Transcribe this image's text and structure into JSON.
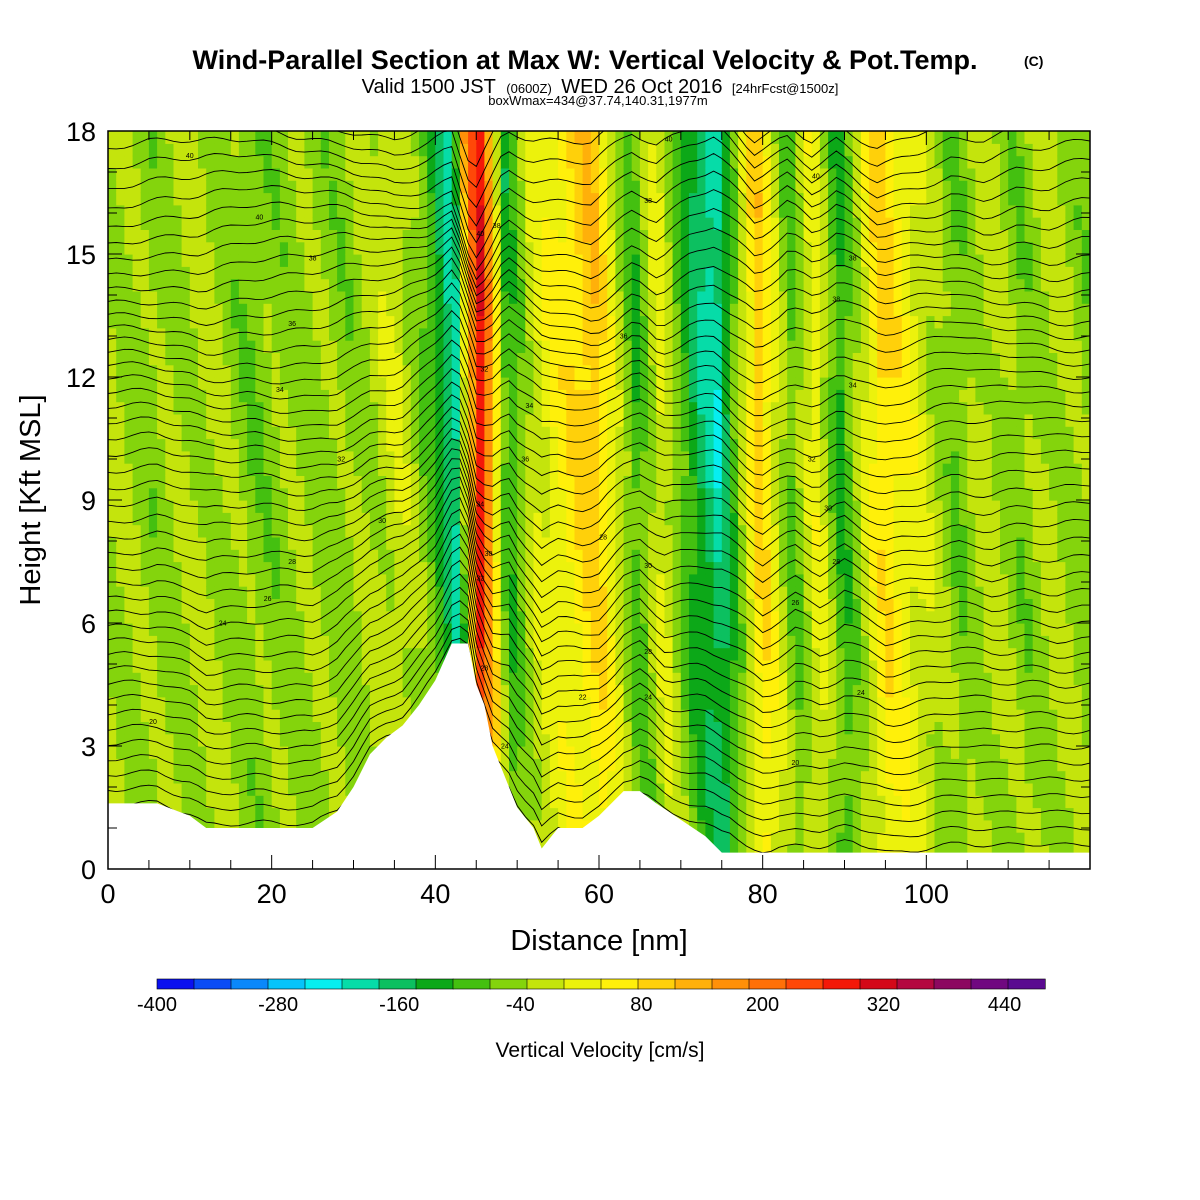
{
  "chart_data": {
    "type": "heatmap",
    "title": "Wind-Parallel Section at Max W: Vertical Velocity & Pot.Temp.",
    "title_mark": "(C)",
    "subtitle": {
      "valid": "Valid 1500 JST",
      "utc": "(0600Z)",
      "date": "WED 26 Oct 2016",
      "forecast": "[24hrFcst@1500z]"
    },
    "box_info": "boxWmax=434@37.74,140.31,1977m",
    "xlabel": "Distance [nm]",
    "ylabel": "Height [Kft MSL]",
    "xlim": [
      0,
      120
    ],
    "ylim": [
      0,
      18
    ],
    "x_ticks": [
      0,
      20,
      40,
      60,
      80,
      100
    ],
    "y_ticks": [
      0,
      3,
      6,
      9,
      12,
      15,
      18
    ],
    "colorbar": {
      "label": "Vertical Velocity [cm/s]",
      "min": -400,
      "max": 480,
      "step": 40,
      "tick_labels": [
        "-400",
        "-280",
        "-160",
        "-40",
        "80",
        "200",
        "320",
        "440"
      ],
      "colors": [
        "#0a10f0",
        "#0a4cf5",
        "#0a88fa",
        "#06c4fa",
        "#06eef0",
        "#06dca8",
        "#0cc060",
        "#0ca818",
        "#44c010",
        "#84d40c",
        "#c4e40c",
        "#ecf20c",
        "#fff00a",
        "#ffd00a",
        "#ffb00a",
        "#ff9008",
        "#ff7008",
        "#ff4808",
        "#f41808",
        "#d40818",
        "#b40840",
        "#8c0860",
        "#700880",
        "#5a0a90"
      ]
    },
    "vertical_velocity_bands": [
      {
        "x": 0,
        "w": 10
      },
      {
        "x": 6,
        "w": -20
      },
      {
        "x": 12,
        "w": 10
      },
      {
        "x": 18,
        "w": -30
      },
      {
        "x": 24,
        "w": -10
      },
      {
        "x": 30,
        "w": -20
      },
      {
        "x": 36,
        "w": 40
      },
      {
        "x": 40,
        "w": -60
      },
      {
        "x": 43,
        "w": -200
      },
      {
        "x": 45.5,
        "w": 400
      },
      {
        "x": 47,
        "w": 200
      },
      {
        "x": 49,
        "w": -100
      },
      {
        "x": 52,
        "w": 30
      },
      {
        "x": 55,
        "w": 80
      },
      {
        "x": 60,
        "w": 160
      },
      {
        "x": 65,
        "w": -80
      },
      {
        "x": 68,
        "w": 60
      },
      {
        "x": 72,
        "w": -120
      },
      {
        "x": 75,
        "w": -200
      },
      {
        "x": 80,
        "w": 160
      },
      {
        "x": 84,
        "w": -60
      },
      {
        "x": 87,
        "w": 80
      },
      {
        "x": 90,
        "w": -100
      },
      {
        "x": 95,
        "w": 140
      },
      {
        "x": 100,
        "w": 40
      },
      {
        "x": 104,
        "w": -40
      },
      {
        "x": 108,
        "w": 20
      },
      {
        "x": 112,
        "w": -30
      },
      {
        "x": 116,
        "w": 10
      },
      {
        "x": 120,
        "w": -20
      }
    ],
    "terrain_profile": {
      "x": [
        0,
        3,
        6,
        10,
        12,
        15,
        18,
        20,
        25,
        28,
        30,
        32,
        34,
        36,
        38,
        40,
        42,
        44,
        45,
        46,
        47,
        48,
        50,
        52,
        53,
        55,
        58,
        60,
        63,
        65,
        67,
        70,
        73,
        75,
        80,
        90,
        100,
        110,
        120
      ],
      "height": [
        1.6,
        1.6,
        1.6,
        1.3,
        1.0,
        1.0,
        1.0,
        1.0,
        1.0,
        1.4,
        2.0,
        2.8,
        3.2,
        3.5,
        4.0,
        4.6,
        5.5,
        5.5,
        4.5,
        4.0,
        3.0,
        2.5,
        1.5,
        1.0,
        0.5,
        1.0,
        1.0,
        1.3,
        1.9,
        1.9,
        1.6,
        1.2,
        0.8,
        0.4,
        0.4,
        0.4,
        0.4,
        0.4,
        0.4
      ]
    },
    "potential_temperature_labels": [
      {
        "text": "40",
        "x": 10,
        "y": 17.4
      },
      {
        "text": "40",
        "x": 18.5,
        "y": 15.9
      },
      {
        "text": "38",
        "x": 25,
        "y": 14.9
      },
      {
        "text": "36",
        "x": 22.5,
        "y": 13.3
      },
      {
        "text": "34",
        "x": 21,
        "y": 11.7
      },
      {
        "text": "32",
        "x": 28.5,
        "y": 10.0
      },
      {
        "text": "30",
        "x": 33.5,
        "y": 8.5
      },
      {
        "text": "28",
        "x": 22.5,
        "y": 7.5
      },
      {
        "text": "26",
        "x": 19.5,
        "y": 6.6
      },
      {
        "text": "24",
        "x": 14,
        "y": 6.0
      },
      {
        "text": "20",
        "x": 5.5,
        "y": 3.6
      },
      {
        "text": "40",
        "x": 45.5,
        "y": 15.5
      },
      {
        "text": "38",
        "x": 47.5,
        "y": 15.7
      },
      {
        "text": "32",
        "x": 46,
        "y": 12.2
      },
      {
        "text": "34",
        "x": 45.5,
        "y": 8.9
      },
      {
        "text": "30",
        "x": 46.5,
        "y": 7.7
      },
      {
        "text": "32",
        "x": 45.5,
        "y": 7.1
      },
      {
        "text": "28",
        "x": 46,
        "y": 4.9
      },
      {
        "text": "24",
        "x": 48.5,
        "y": 3.0
      },
      {
        "text": "34",
        "x": 51.5,
        "y": 11.3
      },
      {
        "text": "36",
        "x": 51,
        "y": 10.0
      },
      {
        "text": "28",
        "x": 60.5,
        "y": 8.1
      },
      {
        "text": "30",
        "x": 66,
        "y": 7.4
      },
      {
        "text": "28",
        "x": 66,
        "y": 5.3
      },
      {
        "text": "24",
        "x": 66,
        "y": 4.2
      },
      {
        "text": "22",
        "x": 58,
        "y": 4.2
      },
      {
        "text": "36",
        "x": 63,
        "y": 13.0
      },
      {
        "text": "38",
        "x": 66,
        "y": 16.3
      },
      {
        "text": "40",
        "x": 68.5,
        "y": 17.8
      },
      {
        "text": "40",
        "x": 86.5,
        "y": 16.9
      },
      {
        "text": "38",
        "x": 91,
        "y": 14.9
      },
      {
        "text": "38",
        "x": 89,
        "y": 13.9
      },
      {
        "text": "34",
        "x": 91,
        "y": 11.8
      },
      {
        "text": "32",
        "x": 86,
        "y": 10.0
      },
      {
        "text": "30",
        "x": 88,
        "y": 8.8
      },
      {
        "text": "28",
        "x": 89,
        "y": 7.5
      },
      {
        "text": "26",
        "x": 84,
        "y": 6.5
      },
      {
        "text": "24",
        "x": 92,
        "y": 4.3
      },
      {
        "text": "20",
        "x": 84,
        "y": 2.6
      }
    ]
  }
}
